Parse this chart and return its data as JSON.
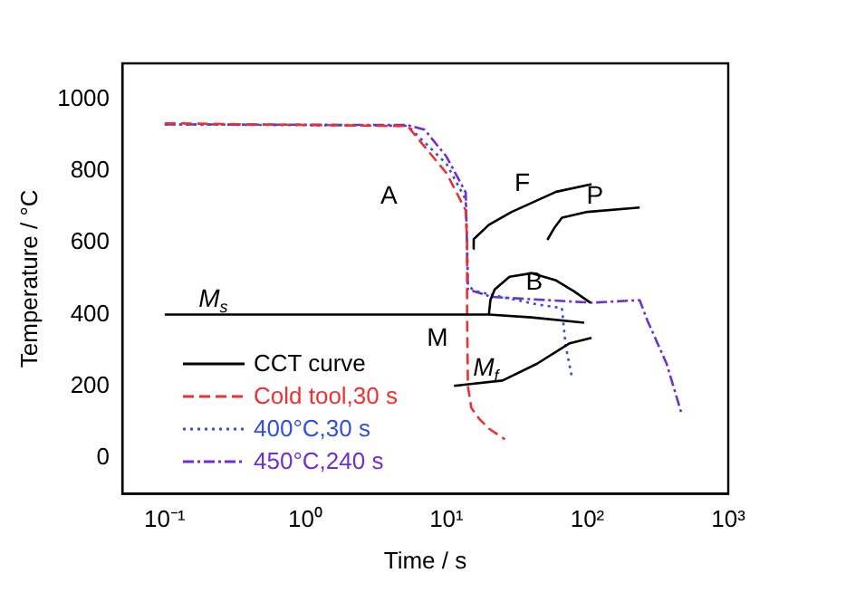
{
  "chart_data": {
    "type": "line",
    "xlabel": "Time / s",
    "ylabel": "Temperature / °C",
    "log": "x",
    "xlim": [
      0.05,
      1000
    ],
    "xticks": [
      {
        "value": 0.1,
        "label": "10⁻¹"
      },
      {
        "value": 1,
        "label": "10⁰"
      },
      {
        "value": 10,
        "label": "10¹"
      },
      {
        "value": 100,
        "label": "10²"
      },
      {
        "value": 1000,
        "label": "10³"
      }
    ],
    "ylim": [
      -100,
      1100
    ],
    "yticks": [
      0,
      200,
      400,
      600,
      800,
      1000
    ],
    "grid": false,
    "legend": "bottom left",
    "marker": "none",
    "series": [
      {
        "name": "CCT curve",
        "color": "#000000",
        "line_style": "solid",
        "x": [
          0.1,
          20,
          40,
          95
        ],
        "values": [
          400,
          400,
          392,
          377
        ]
      },
      {
        "color": "#000000",
        "line_style": "solid",
        "x": [
          20,
          20.5,
          22,
          28,
          40,
          60,
          80,
          105
        ],
        "values": [
          400,
          440,
          470,
          505,
          515,
          495,
          465,
          433
        ]
      },
      {
        "color": "#000000",
        "line_style": "solid",
        "x": [
          15.5,
          15.6,
          20,
          29,
          60,
          107
        ],
        "values": [
          583,
          610,
          650,
          686,
          742,
          763
        ]
      },
      {
        "color": "#000000",
        "line_style": "solid",
        "x": [
          52,
          58,
          66,
          100,
          235
        ],
        "values": [
          608,
          640,
          670,
          686,
          698
        ]
      },
      {
        "color": "#000000",
        "line_style": "solid",
        "x": [
          11.3,
          25,
          44,
          75,
          107
        ],
        "values": [
          201,
          216,
          263,
          320,
          335
        ]
      },
      {
        "name": "Cold tool,30 s",
        "color": "#f03030",
        "line_style": "dashed",
        "x": [
          0.1,
          5.3,
          10,
          13.7,
          14,
          14,
          14.2,
          15,
          17,
          20,
          26
        ],
        "values": [
          933,
          925,
          794,
          690,
          600,
          400,
          200,
          140,
          110,
          82,
          52
        ]
      },
      {
        "name": "400°C,30 s",
        "color": "#3050e0",
        "line_style": "dotted",
        "x": [
          0.1,
          5.3,
          10,
          13.7,
          14,
          14.2,
          16,
          44,
          66,
          70,
          78
        ],
        "values": [
          930,
          926,
          820,
          720,
          600,
          480,
          465,
          428,
          418,
          315,
          222
        ]
      },
      {
        "name": "450°C,240 s",
        "color": "#7030d0",
        "line_style": "dashdot",
        "x": [
          0.1,
          5.3,
          7,
          10,
          13.7,
          14,
          14.2,
          21,
          107,
          235,
          267,
          365,
          470
        ],
        "values": [
          930,
          928,
          915,
          840,
          740,
          583,
          470,
          449,
          433,
          440,
          383,
          263,
          119
        ]
      }
    ],
    "annotations": [
      "A",
      "F",
      "P",
      "B",
      "M",
      "M$_{f}$",
      "M$_{s}$"
    ]
  }
}
